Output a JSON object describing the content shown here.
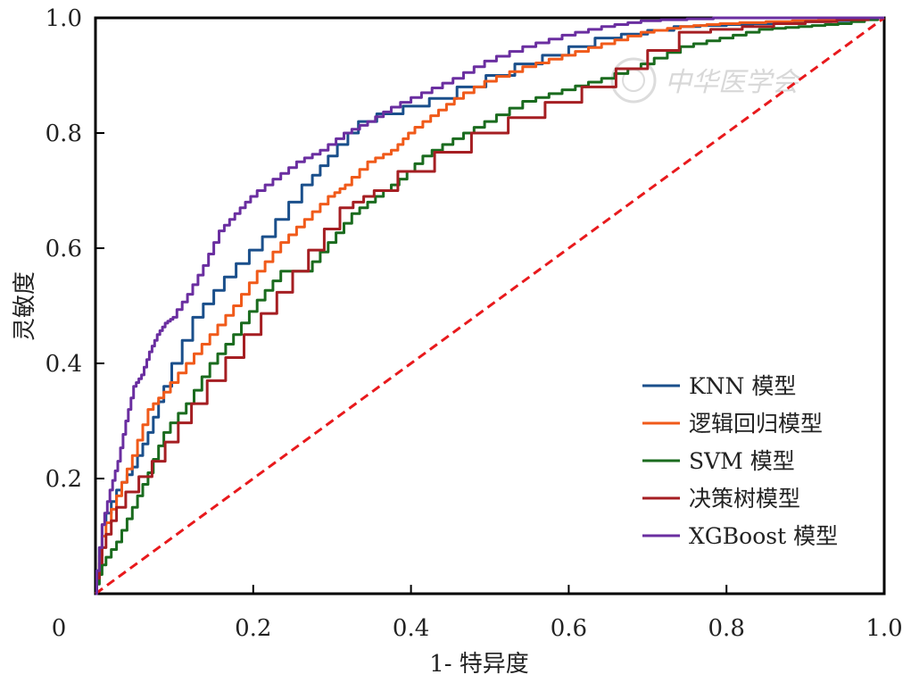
{
  "chart_data": {
    "type": "line",
    "xlabel": "1- 特异度",
    "ylabel": "灵敏度",
    "xlim": [
      0,
      1
    ],
    "ylim": [
      0,
      1
    ],
    "x_ticks": [
      {
        "value": 0,
        "label": "0"
      },
      {
        "value": 0.2,
        "label": "0.2"
      },
      {
        "value": 0.4,
        "label": "0.4"
      },
      {
        "value": 0.6,
        "label": "0.6"
      },
      {
        "value": 0.8,
        "label": "0.8"
      },
      {
        "value": 1.0,
        "label": "1.0"
      }
    ],
    "y_ticks": [
      {
        "value": 0.2,
        "label": "0.2"
      },
      {
        "value": 0.4,
        "label": "0.4"
      },
      {
        "value": 0.6,
        "label": "0.6"
      },
      {
        "value": 0.8,
        "label": "0.8"
      },
      {
        "value": 1.0,
        "label": "1.0"
      }
    ],
    "grid": false,
    "legend_position": "bottom-right",
    "watermark": "中华医学会",
    "reference_line": {
      "color": "#e8191c",
      "style": "dashed",
      "x": [
        0,
        1
      ],
      "y": [
        0,
        1
      ]
    },
    "series": [
      {
        "name": "KNN 模型",
        "color": "#1a4f8b",
        "x": [
          0,
          0.01,
          0.03,
          0.05,
          0.07,
          0.09,
          0.13,
          0.17,
          0.22,
          0.27,
          0.3,
          0.34,
          0.44,
          0.55,
          0.65,
          0.75,
          0.85,
          0.95,
          1.0
        ],
        "y": [
          0,
          0.12,
          0.18,
          0.22,
          0.28,
          0.36,
          0.48,
          0.55,
          0.62,
          0.71,
          0.76,
          0.82,
          0.86,
          0.92,
          0.965,
          0.985,
          0.99,
          0.995,
          1.0
        ]
      },
      {
        "name": "逻辑回归模型",
        "color": "#f05a1a",
        "x": [
          0,
          0.01,
          0.03,
          0.05,
          0.07,
          0.09,
          0.12,
          0.15,
          0.18,
          0.21,
          0.24,
          0.27,
          0.3,
          0.32,
          0.35,
          0.38,
          0.4,
          0.43,
          0.46,
          0.5,
          0.55,
          0.6,
          0.65,
          0.7,
          0.75,
          0.8,
          0.9,
          1.0
        ],
        "y": [
          0,
          0.1,
          0.17,
          0.24,
          0.32,
          0.35,
          0.4,
          0.45,
          0.5,
          0.56,
          0.61,
          0.65,
          0.69,
          0.71,
          0.75,
          0.77,
          0.8,
          0.83,
          0.86,
          0.89,
          0.915,
          0.935,
          0.955,
          0.975,
          0.985,
          0.99,
          0.995,
          1.0
        ]
      },
      {
        "name": "SVM 模型",
        "color": "#1a6b1e",
        "x": [
          0,
          0.01,
          0.03,
          0.05,
          0.07,
          0.09,
          0.12,
          0.15,
          0.18,
          0.21,
          0.24,
          0.27,
          0.3,
          0.33,
          0.36,
          0.39,
          0.42,
          0.46,
          0.5,
          0.55,
          0.6,
          0.65,
          0.7,
          0.75,
          0.8,
          0.85,
          0.9,
          0.95,
          1.0
        ],
        "y": [
          0,
          0.05,
          0.09,
          0.15,
          0.21,
          0.28,
          0.33,
          0.4,
          0.45,
          0.51,
          0.56,
          0.56,
          0.61,
          0.66,
          0.69,
          0.72,
          0.76,
          0.79,
          0.82,
          0.855,
          0.875,
          0.895,
          0.92,
          0.95,
          0.965,
          0.98,
          0.985,
          0.99,
          1.0
        ]
      },
      {
        "name": "决策树模型",
        "color": "#a51e22",
        "x": [
          0,
          0.01,
          0.03,
          0.08,
          0.13,
          0.2,
          0.26,
          0.32,
          0.36,
          0.5,
          0.64,
          0.76,
          0.88,
          1.0
        ],
        "y": [
          0,
          0.08,
          0.15,
          0.23,
          0.33,
          0.45,
          0.56,
          0.67,
          0.7,
          0.8,
          0.88,
          0.975,
          0.99,
          1.0
        ]
      },
      {
        "name": "XGBoost 模型",
        "color": "#6a2ea0",
        "x": [
          0,
          0.01,
          0.02,
          0.03,
          0.04,
          0.05,
          0.06,
          0.07,
          0.08,
          0.09,
          0.1,
          0.12,
          0.14,
          0.16,
          0.18,
          0.2,
          0.23,
          0.26,
          0.29,
          0.32,
          0.35,
          0.38,
          0.42,
          0.46,
          0.5,
          0.55,
          0.6,
          0.65,
          0.7,
          0.8,
          0.9,
          1.0
        ],
        "y": [
          0,
          0.12,
          0.18,
          0.23,
          0.3,
          0.36,
          0.38,
          0.42,
          0.45,
          0.47,
          0.48,
          0.52,
          0.57,
          0.63,
          0.66,
          0.69,
          0.72,
          0.75,
          0.77,
          0.8,
          0.82,
          0.845,
          0.87,
          0.895,
          0.925,
          0.95,
          0.97,
          0.985,
          0.995,
          1.0,
          1.0,
          1.0
        ]
      }
    ]
  }
}
